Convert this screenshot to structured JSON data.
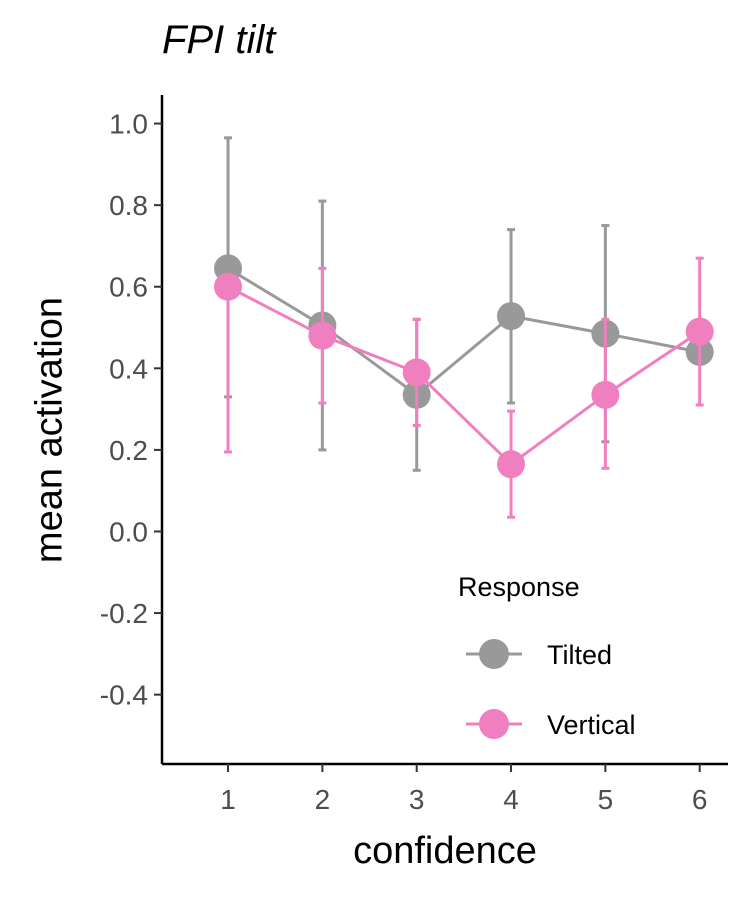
{
  "chart_data": {
    "type": "line",
    "title": "FPI tilt",
    "xlabel": "confidence",
    "ylabel": "mean activation",
    "x": [
      1,
      2,
      3,
      4,
      5,
      6
    ],
    "xlim": [
      0.3,
      6.3
    ],
    "ylim": [
      -0.57,
      1.07
    ],
    "yticks": [
      1.0,
      0.8,
      0.6,
      0.4,
      0.2,
      0.0,
      -0.2,
      -0.4
    ],
    "ytick_labels": [
      "1.0",
      "0.8",
      "0.6",
      "0.4",
      "0.2",
      "0.0",
      "-0.2",
      "-0.4"
    ],
    "xtick_labels": [
      "1",
      "2",
      "3",
      "4",
      "5",
      "6"
    ],
    "grid": false,
    "legend": {
      "title": "Response",
      "position": "bottom-right"
    },
    "series": [
      {
        "name": "Tilted",
        "color": "#999999",
        "values": [
          0.645,
          0.505,
          0.335,
          0.528,
          0.485,
          0.44
        ],
        "err_low": [
          0.33,
          0.2,
          0.15,
          0.315,
          0.22,
          0.44
        ],
        "err_high": [
          0.965,
          0.81,
          0.52,
          0.74,
          0.75,
          0.44
        ]
      },
      {
        "name": "Vertical",
        "color": "#F07FC0",
        "values": [
          0.6,
          0.48,
          0.39,
          0.165,
          0.335,
          0.49
        ],
        "err_low": [
          0.195,
          0.315,
          0.26,
          0.035,
          0.155,
          0.31
        ],
        "err_high": [
          0.6,
          0.645,
          0.52,
          0.295,
          0.52,
          0.67
        ]
      }
    ]
  }
}
